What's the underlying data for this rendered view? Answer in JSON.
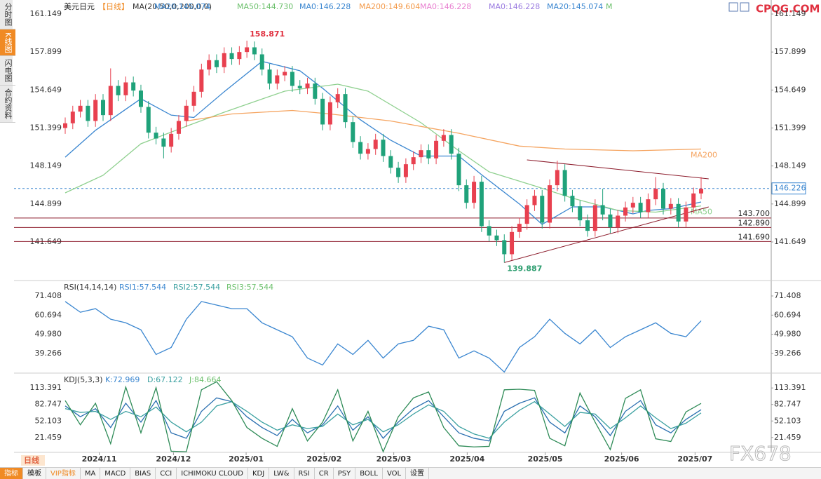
{
  "sidebar": [
    "分时图",
    "K线图",
    "闪电图",
    "合约资料"
  ],
  "toolbar": [
    "指标",
    "模板",
    "VIP指标",
    "MA",
    "MACD",
    "BIAS",
    "CCI",
    "ICHIMOKU CLOUD",
    "KDJ",
    "LW&",
    "RSI",
    "CR",
    "PSY",
    "BOLL",
    "VOL",
    "设置"
  ],
  "logo": "CPQG.COM",
  "watermark": "FX678",
  "period": "日线",
  "chart_data": [
    {
      "type": "candlestick",
      "legend": [
        {
          "text": "美元日元",
          "color": "#222222"
        },
        {
          "text": "【日线】",
          "color": "#f08a24"
        },
        {
          "text": "MA(20,50,0,200,0,0)",
          "color": "#333333"
        },
        {
          "text": "MA20:145.074",
          "color": "#3a86d0"
        },
        {
          "text": "MA50:144.730",
          "color": "#6cc06c"
        },
        {
          "text": "MA0:146.228",
          "color": "#3a86d0"
        },
        {
          "text": "MA200:149.604",
          "color": "#f39a4a"
        },
        {
          "text": "MA0:146.228",
          "color": "#e87fd0"
        },
        {
          "text": "MA0:146.228",
          "color": "#9a7be0"
        },
        {
          "text": "MA20:145.074",
          "color": "#3a86d0"
        },
        {
          "text": "M",
          "color": "#6cc06c"
        }
      ],
      "xlim": [
        0,
        84
      ],
      "ylim": [
        138.349,
        162.349
      ],
      "yticks": [
        161.149,
        157.899,
        154.649,
        151.399,
        148.149,
        144.899,
        141.649
      ],
      "xticks": [
        {
          "value": 4.5,
          "label": "2024/11"
        },
        {
          "value": 14.3,
          "label": "2024/12"
        },
        {
          "value": 23.9,
          "label": "2025/01"
        },
        {
          "value": 34.2,
          "label": "2025/02"
        },
        {
          "value": 43.4,
          "label": "2025/03"
        },
        {
          "value": 53.1,
          "label": "2025/04"
        },
        {
          "value": 63.4,
          "label": "2025/05"
        },
        {
          "value": 73.5,
          "label": "2025/06"
        },
        {
          "value": 83.2,
          "label": "2025/07"
        }
      ],
      "up_color": "#e8404f",
      "down_color": "#1fa27a",
      "open": [
        151.4,
        151.8,
        152.8,
        153.3,
        152.0,
        153.8,
        152.5,
        155.0,
        154.2,
        155.3,
        154.6,
        153.2,
        151.0,
        150.5,
        149.8,
        150.9,
        152.0,
        153.3,
        154.5,
        156.4,
        157.2,
        156.6,
        157.8,
        157.3,
        157.9,
        158.3,
        157.7,
        156.4,
        155.2,
        155.9,
        156.2,
        155.0,
        154.8,
        155.2,
        153.9,
        151.7,
        153.6,
        154.3,
        151.9,
        150.2,
        149.2,
        149.6,
        150.4,
        149.0,
        148.0,
        147.2,
        148.3,
        148.9,
        149.5,
        148.8,
        150.3,
        150.8,
        149.2,
        146.5,
        145.0,
        146.8,
        143.0,
        142.2,
        141.8,
        140.6,
        142.5,
        143.2,
        144.8,
        145.6,
        143.3,
        146.5,
        147.8,
        145.6,
        144.7,
        143.5,
        142.6,
        144.8,
        144.0,
        142.9,
        143.9,
        144.6,
        145.0,
        144.2,
        145.3,
        146.2,
        144.5,
        144.9,
        143.4,
        144.6,
        145.8
      ],
      "high": [
        152.3,
        153.3,
        153.8,
        153.8,
        154.3,
        154.3,
        156.5,
        155.5,
        155.8,
        155.8,
        155.1,
        153.7,
        151.5,
        151.0,
        151.4,
        152.5,
        153.8,
        155.0,
        156.9,
        157.7,
        157.7,
        158.3,
        158.3,
        158.4,
        158.871,
        158.8,
        158.2,
        156.9,
        156.4,
        156.7,
        156.7,
        155.5,
        155.7,
        155.7,
        154.4,
        154.1,
        154.8,
        154.8,
        152.4,
        150.7,
        150.1,
        150.9,
        150.9,
        149.5,
        148.5,
        148.8,
        149.4,
        150.0,
        150.0,
        150.8,
        151.3,
        151.3,
        149.7,
        147.0,
        147.3,
        147.3,
        143.5,
        142.7,
        142.3,
        143.0,
        143.7,
        145.3,
        146.1,
        146.1,
        147.0,
        148.6,
        148.3,
        146.1,
        145.2,
        144.0,
        145.3,
        146.2,
        144.5,
        144.4,
        145.1,
        145.5,
        145.5,
        145.8,
        147.2,
        146.7,
        145.4,
        145.4,
        145.1,
        146.3,
        147.2
      ],
      "low": [
        150.9,
        151.3,
        152.3,
        151.5,
        151.5,
        152.0,
        152.0,
        153.7,
        153.7,
        154.1,
        152.7,
        150.5,
        150.0,
        148.8,
        149.3,
        150.4,
        151.5,
        152.8,
        154.0,
        155.9,
        156.1,
        156.1,
        156.8,
        156.8,
        157.4,
        157.2,
        155.9,
        154.7,
        154.7,
        155.4,
        154.5,
        154.3,
        154.3,
        153.4,
        151.2,
        151.2,
        153.1,
        151.4,
        149.7,
        148.7,
        148.7,
        149.1,
        148.5,
        147.5,
        146.7,
        146.7,
        147.8,
        148.4,
        148.3,
        148.3,
        149.8,
        148.7,
        146.0,
        144.5,
        144.5,
        142.5,
        141.7,
        141.3,
        139.887,
        140.1,
        142.0,
        142.7,
        144.3,
        142.8,
        142.8,
        146.0,
        145.1,
        144.2,
        143.0,
        142.1,
        142.1,
        143.5,
        142.4,
        142.4,
        143.4,
        144.1,
        143.7,
        143.7,
        144.8,
        144.0,
        144.0,
        142.9,
        142.9,
        144.1,
        145.3
      ],
      "close": [
        151.8,
        152.8,
        153.3,
        152.0,
        153.8,
        152.5,
        155.0,
        154.2,
        155.3,
        154.6,
        153.2,
        151.0,
        150.5,
        149.8,
        150.9,
        152.0,
        153.3,
        154.5,
        156.4,
        157.2,
        156.6,
        157.8,
        157.3,
        157.9,
        158.3,
        157.7,
        156.4,
        155.2,
        155.9,
        156.2,
        155.0,
        154.8,
        155.2,
        153.9,
        151.7,
        153.6,
        154.3,
        151.9,
        150.2,
        149.2,
        149.6,
        150.4,
        149.0,
        148.0,
        147.2,
        148.3,
        148.9,
        149.5,
        148.8,
        150.3,
        150.8,
        149.2,
        146.5,
        145.0,
        146.8,
        143.0,
        142.2,
        141.8,
        140.6,
        142.5,
        143.2,
        144.8,
        145.6,
        143.3,
        146.5,
        147.8,
        145.6,
        144.7,
        143.5,
        142.6,
        144.8,
        144.0,
        142.9,
        143.9,
        144.6,
        145.0,
        144.2,
        145.3,
        146.2,
        144.5,
        144.9,
        143.4,
        144.6,
        145.8,
        146.2
      ],
      "series": [
        {
          "color": "#3a86d0",
          "x": [
            0,
            4,
            10,
            14,
            17,
            21,
            26,
            31,
            34,
            39,
            43,
            47,
            52,
            55,
            60,
            63,
            67,
            71,
            75,
            77,
            80,
            84
          ],
          "values": [
            148.9,
            151.2,
            153.9,
            152.5,
            152.3,
            154.5,
            157.1,
            156.3,
            154.8,
            152.1,
            150.35,
            149.0,
            149.0,
            147.4,
            144.9,
            143.15,
            144.65,
            144.65,
            144.05,
            144.35,
            144.5,
            145.07
          ]
        },
        {
          "name": "MA50",
          "color": "#8fd08f",
          "x": [
            0,
            5,
            10,
            16,
            21,
            29,
            36,
            40,
            47,
            52,
            56,
            62,
            67,
            73,
            78,
            84
          ],
          "values": [
            145.85,
            147.35,
            150.05,
            151.55,
            152.75,
            154.55,
            155.15,
            154.55,
            151.85,
            149.45,
            147.65,
            146.45,
            145.4,
            144.35,
            144.2,
            144.73
          ]
        },
        {
          "name": "MA200",
          "color": "#f5a460",
          "x": [
            16,
            22,
            30,
            35,
            43,
            52,
            60,
            66,
            75,
            84
          ],
          "values": [
            152.0,
            152.6,
            152.9,
            152.6,
            152.0,
            150.95,
            149.85,
            149.6,
            149.45,
            149.6
          ]
        }
      ],
      "levels": [
        {
          "value": 143.7,
          "label": "143.700"
        },
        {
          "value": 142.89,
          "label": "142.890"
        },
        {
          "value": 141.69,
          "label": "141.690"
        }
      ],
      "level_color": "#8b1a2a",
      "last_price": 146.226,
      "annotations": [
        {
          "x": 24,
          "value": 158.871,
          "color": "#e0303f"
        },
        {
          "x": 58,
          "value": 139.887,
          "color": "#2e9e70"
        }
      ],
      "trendlines": [
        {
          "x": [
            61,
            85
          ],
          "values": [
            148.67,
            147.05
          ]
        },
        {
          "x": [
            58,
            85
          ],
          "values": [
            139.887,
            144.65
          ]
        }
      ]
    },
    {
      "type": "line",
      "legend": [
        {
          "text": "RSI(14,14,14)",
          "color": "#333333"
        },
        {
          "text": "RSI1:57.544",
          "color": "#3a86d0"
        },
        {
          "text": "RSI2:57.544",
          "color": "#3aa0a0"
        },
        {
          "text": "RSI3:57.544",
          "color": "#6cc06c"
        }
      ],
      "xlim": [
        0,
        84
      ],
      "ylim": [
        28.29,
        80.03
      ],
      "yticks": [
        71.408,
        60.694,
        {
          "value": 49.98,
          "label": "49.980"
        },
        39.266
      ],
      "series": [
        {
          "color": "#3a86d0",
          "x": [
            0,
            2,
            4,
            6,
            8,
            10,
            12,
            14,
            16,
            18,
            20,
            22,
            24,
            26,
            28,
            30,
            32,
            34,
            36,
            38,
            40,
            42,
            44,
            46,
            48,
            50,
            52,
            54,
            56,
            58,
            60,
            62,
            64,
            66,
            68,
            70,
            72,
            74,
            76,
            78,
            80,
            82,
            84
          ],
          "values": [
            68.3,
            62.3,
            64.3,
            58.4,
            56.4,
            52.5,
            38.7,
            42.6,
            58.4,
            68.3,
            66.3,
            64.3,
            64.3,
            56.4,
            52.5,
            48.6,
            36.7,
            32.8,
            44.6,
            38.7,
            46.6,
            36.7,
            44.6,
            46.6,
            54.5,
            52.5,
            36.7,
            40.7,
            36.7,
            28.9,
            42.6,
            48.6,
            58.4,
            50.5,
            44.6,
            52.5,
            42.6,
            48.6,
            52.5,
            56.4,
            50.5,
            48.6,
            57.5
          ]
        }
      ]
    },
    {
      "type": "line",
      "legend": [
        {
          "text": "KDJ(5,3,3)",
          "color": "#333333"
        },
        {
          "text": "K:72.969",
          "color": "#3a86d0"
        },
        {
          "text": "D:67.122",
          "color": "#3aa0a0"
        },
        {
          "text": "J:84.664",
          "color": "#6cc06c"
        }
      ],
      "xlim": [
        0,
        84
      ],
      "ylim": [
        -6.12,
        140.97
      ],
      "yticks": [
        113.391,
        82.747,
        52.103,
        21.459
      ],
      "series": [
        {
          "color": "#2a6fb0",
          "x": [
            0,
            2,
            4,
            6,
            8,
            10,
            12,
            14,
            16,
            18,
            20,
            22,
            24,
            26,
            28,
            30,
            32,
            34,
            36,
            38,
            40,
            42,
            44,
            46,
            48,
            50,
            52,
            54,
            56,
            58,
            60,
            62,
            64,
            66,
            68,
            70,
            72,
            74,
            76,
            78,
            80,
            82,
            84
          ],
          "values": [
            80,
            60,
            75,
            40,
            85,
            50,
            90,
            30,
            20,
            70,
            95,
            88,
            60,
            40,
            25,
            55,
            30,
            45,
            80,
            35,
            60,
            20,
            50,
            75,
            90,
            60,
            30,
            20,
            15,
            70,
            85,
            95,
            50,
            30,
            80,
            60,
            25,
            70,
            90,
            45,
            30,
            55,
            73.0
          ]
        },
        {
          "color": "#3aa0a0",
          "x": [
            0,
            2,
            4,
            6,
            8,
            10,
            12,
            14,
            16,
            18,
            20,
            22,
            24,
            26,
            28,
            30,
            32,
            34,
            36,
            38,
            40,
            42,
            44,
            46,
            48,
            50,
            52,
            54,
            56,
            58,
            60,
            62,
            64,
            66,
            68,
            70,
            72,
            74,
            76,
            78,
            80,
            82,
            84
          ],
          "values": [
            75,
            68,
            70,
            55,
            70,
            60,
            78,
            50,
            32,
            50,
            80,
            88,
            70,
            50,
            35,
            45,
            38,
            42,
            65,
            45,
            55,
            32,
            45,
            65,
            82,
            70,
            42,
            28,
            20,
            50,
            72,
            88,
            65,
            42,
            68,
            65,
            38,
            58,
            80,
            58,
            38,
            48,
            67.1
          ]
        },
        {
          "color": "#2e8b57",
          "x": [
            0,
            2,
            4,
            6,
            8,
            10,
            12,
            14,
            16,
            18,
            20,
            22,
            24,
            26,
            28,
            30,
            32,
            34,
            36,
            38,
            40,
            42,
            44,
            46,
            48,
            50,
            52,
            54,
            56,
            58,
            60,
            62,
            64,
            66,
            68,
            70,
            72,
            74,
            76,
            78,
            80,
            82,
            84
          ],
          "values": [
            90,
            45,
            85,
            10,
            115,
            30,
            114,
            -4,
            -5,
            110,
            125,
            90,
            40,
            20,
            5,
            75,
            15,
            50,
            110,
            15,
            70,
            -5,
            60,
            95,
            106,
            40,
            6,
            4,
            5,
            110,
            111,
            109,
            20,
            6,
            104,
            50,
            -1,
            94,
            110,
            19,
            14,
            69,
            84.7
          ]
        }
      ]
    }
  ]
}
